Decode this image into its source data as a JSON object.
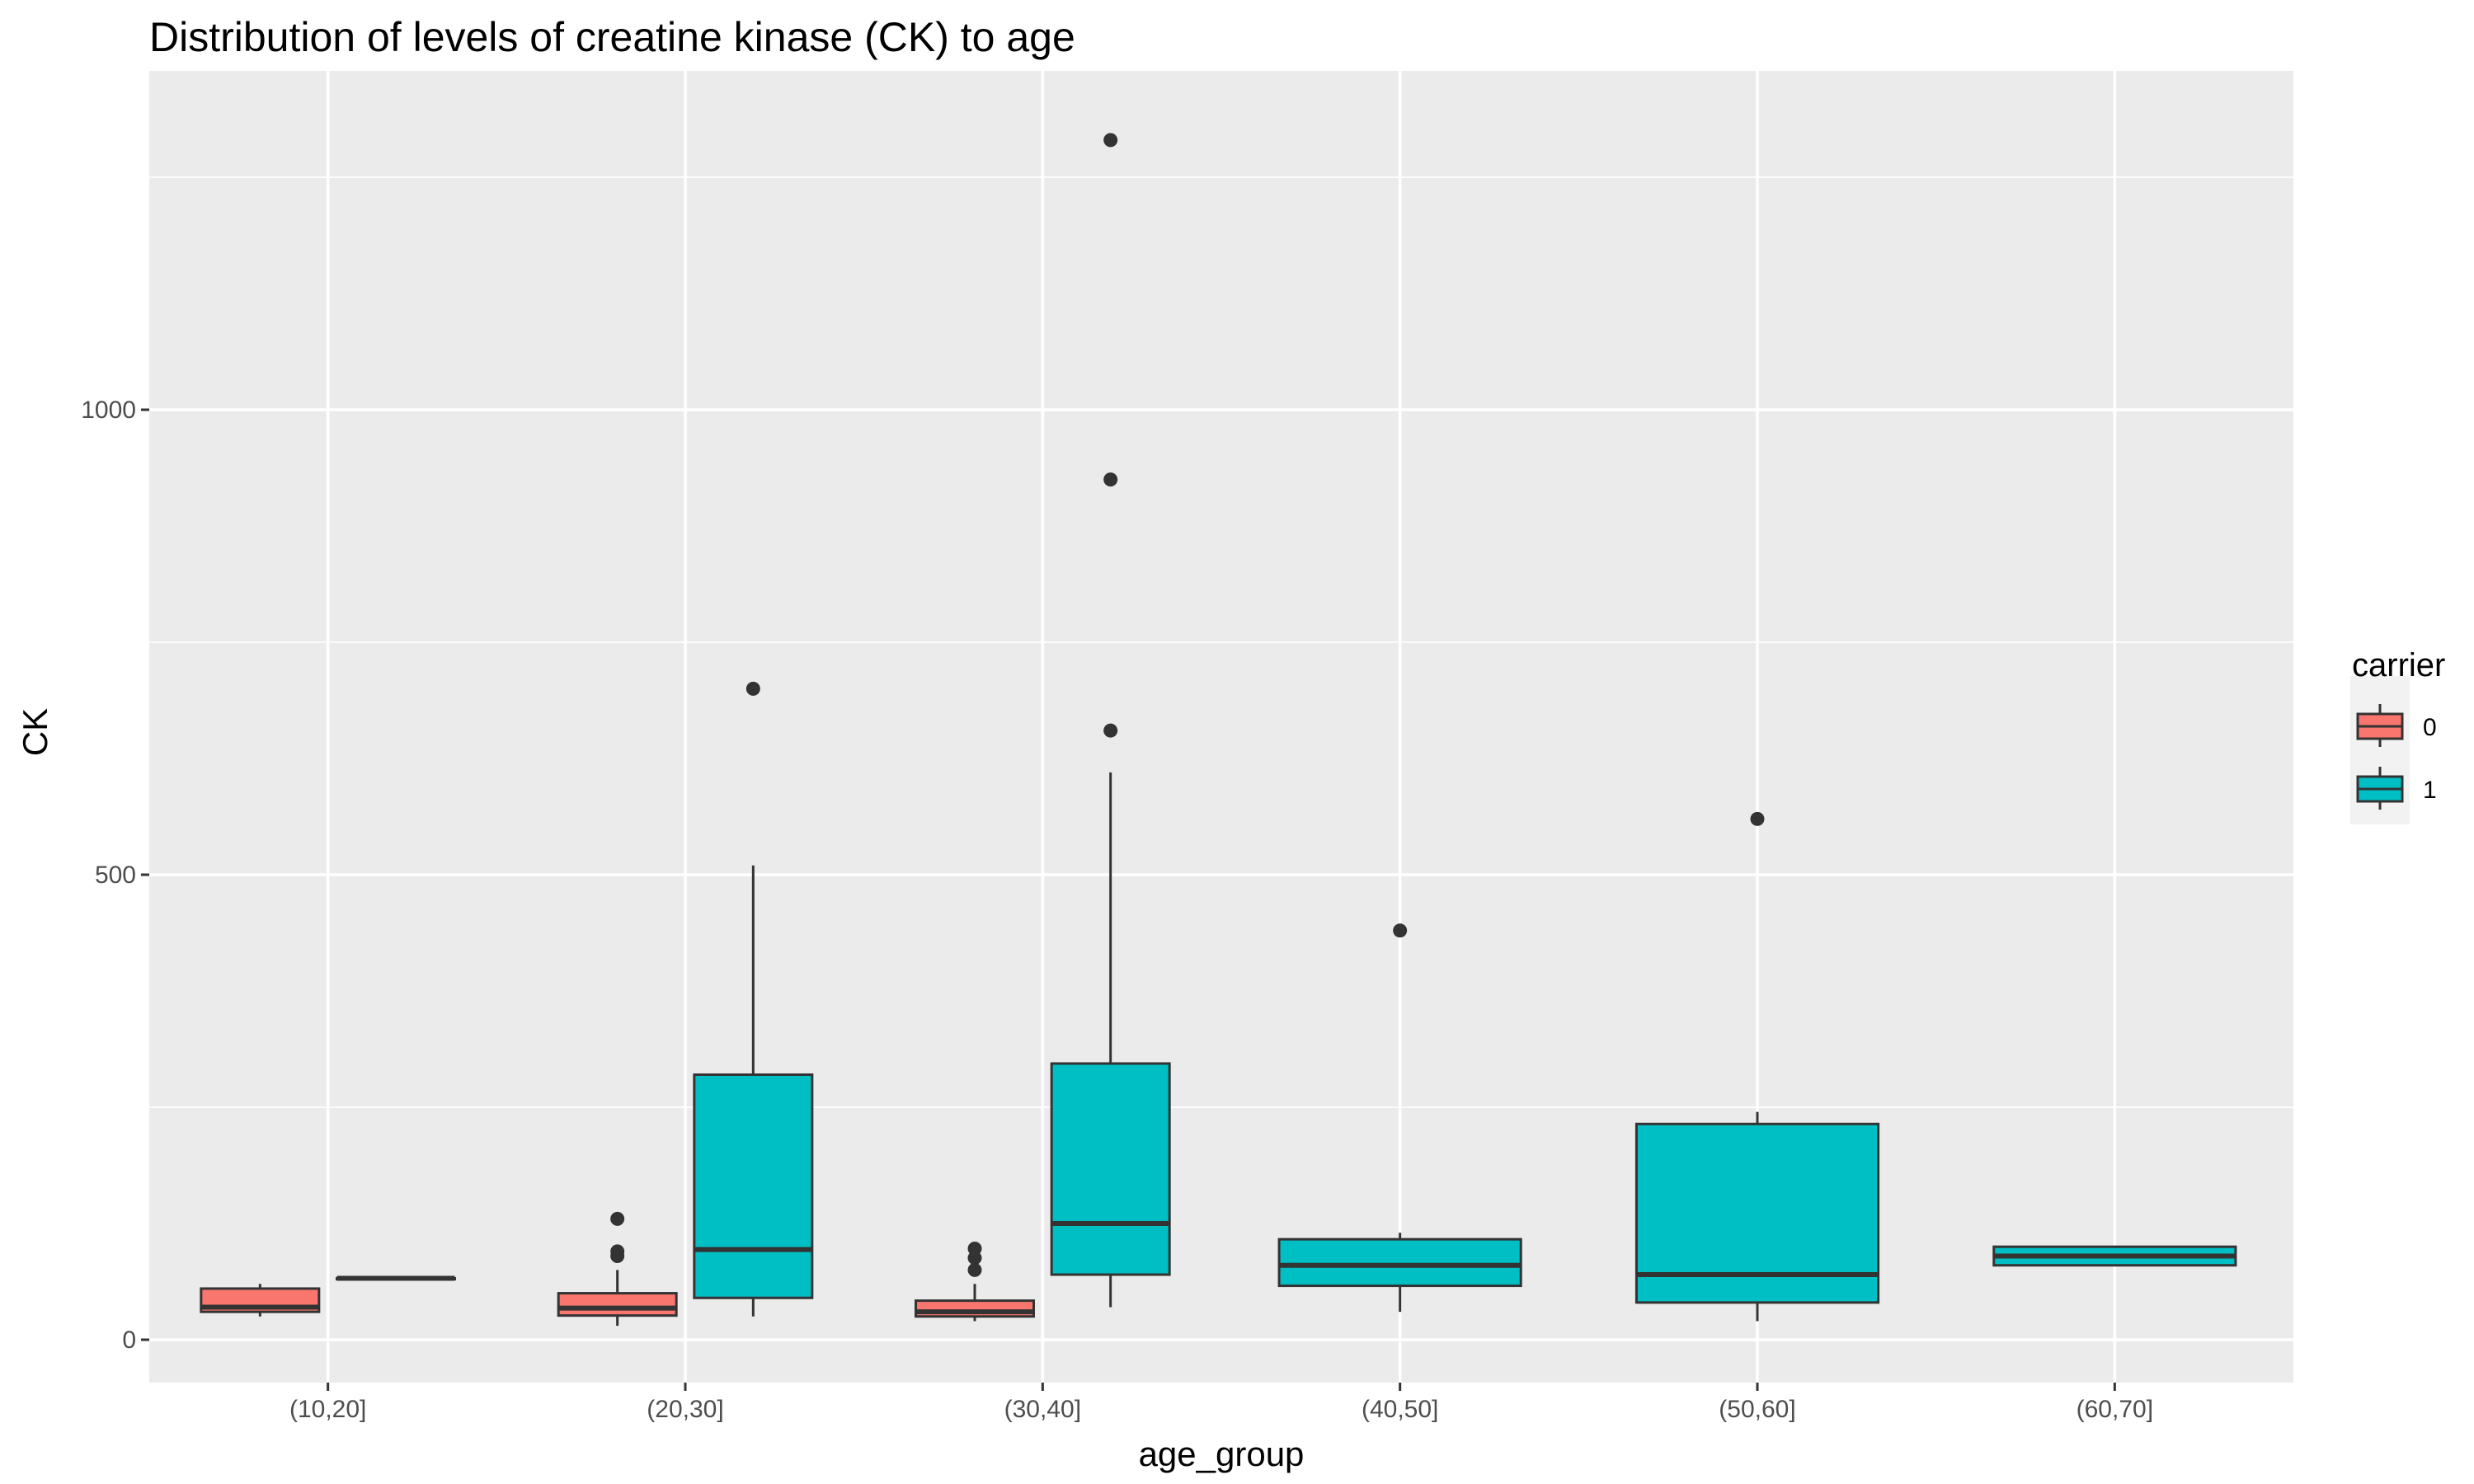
{
  "chart_data": {
    "type": "boxplot",
    "title": "Distribution of levels of creatine kinase (CK) to age",
    "xlabel": "age_group",
    "ylabel": "CK",
    "categories": [
      "(10,20]",
      "(20,30]",
      "(30,40]",
      "(40,50]",
      "(50,60]",
      "(60,70]"
    ],
    "y_ticks": [
      0,
      500,
      1000
    ],
    "ylim": [
      -50,
      1340
    ],
    "grid": true,
    "legend": {
      "title": "carrier",
      "placement": "right",
      "entries": [
        {
          "label": "0",
          "color": "#F8766D"
        },
        {
          "label": "1",
          "color": "#00BFC4"
        }
      ]
    },
    "series": [
      {
        "name": "0",
        "color": "#F8766D",
        "boxes": [
          {
            "category": "(10,20]",
            "whisker_low": 25,
            "q1": 30,
            "median": 35,
            "q3": 55,
            "whisker_high": 60,
            "outliers": []
          },
          {
            "category": "(20,30]",
            "whisker_low": 15,
            "q1": 26,
            "median": 34,
            "q3": 50,
            "whisker_high": 75,
            "outliers": [
              90,
              95,
              130
            ]
          },
          {
            "category": "(30,40]",
            "whisker_low": 20,
            "q1": 25,
            "median": 30,
            "q3": 42,
            "whisker_high": 60,
            "outliers": [
              75,
              88,
              98
            ]
          }
        ]
      },
      {
        "name": "1",
        "color": "#00BFC4",
        "boxes": [
          {
            "category": "(10,20]",
            "whisker_low": 66,
            "q1": 66,
            "median": 66,
            "q3": 66,
            "whisker_high": 66,
            "outliers": []
          },
          {
            "category": "(20,30]",
            "whisker_low": 25,
            "q1": 45,
            "median": 97,
            "q3": 285,
            "whisker_high": 510,
            "outliers": [
              700
            ]
          },
          {
            "category": "(30,40]",
            "whisker_low": 35,
            "q1": 70,
            "median": 125,
            "q3": 297,
            "whisker_high": 610,
            "outliers": [
              655,
              925,
              1290
            ]
          },
          {
            "category": "(40,50]",
            "whisker_low": 30,
            "q1": 58,
            "median": 80,
            "q3": 108,
            "whisker_high": 115,
            "outliers": [
              440
            ]
          },
          {
            "category": "(50,60]",
            "whisker_low": 20,
            "q1": 40,
            "median": 70,
            "q3": 232,
            "whisker_high": 245,
            "outliers": [
              560
            ]
          },
          {
            "category": "(60,70]",
            "whisker_low": 80,
            "q1": 80,
            "median": 90,
            "q3": 100,
            "whisker_high": 100,
            "outliers": []
          }
        ]
      }
    ]
  }
}
